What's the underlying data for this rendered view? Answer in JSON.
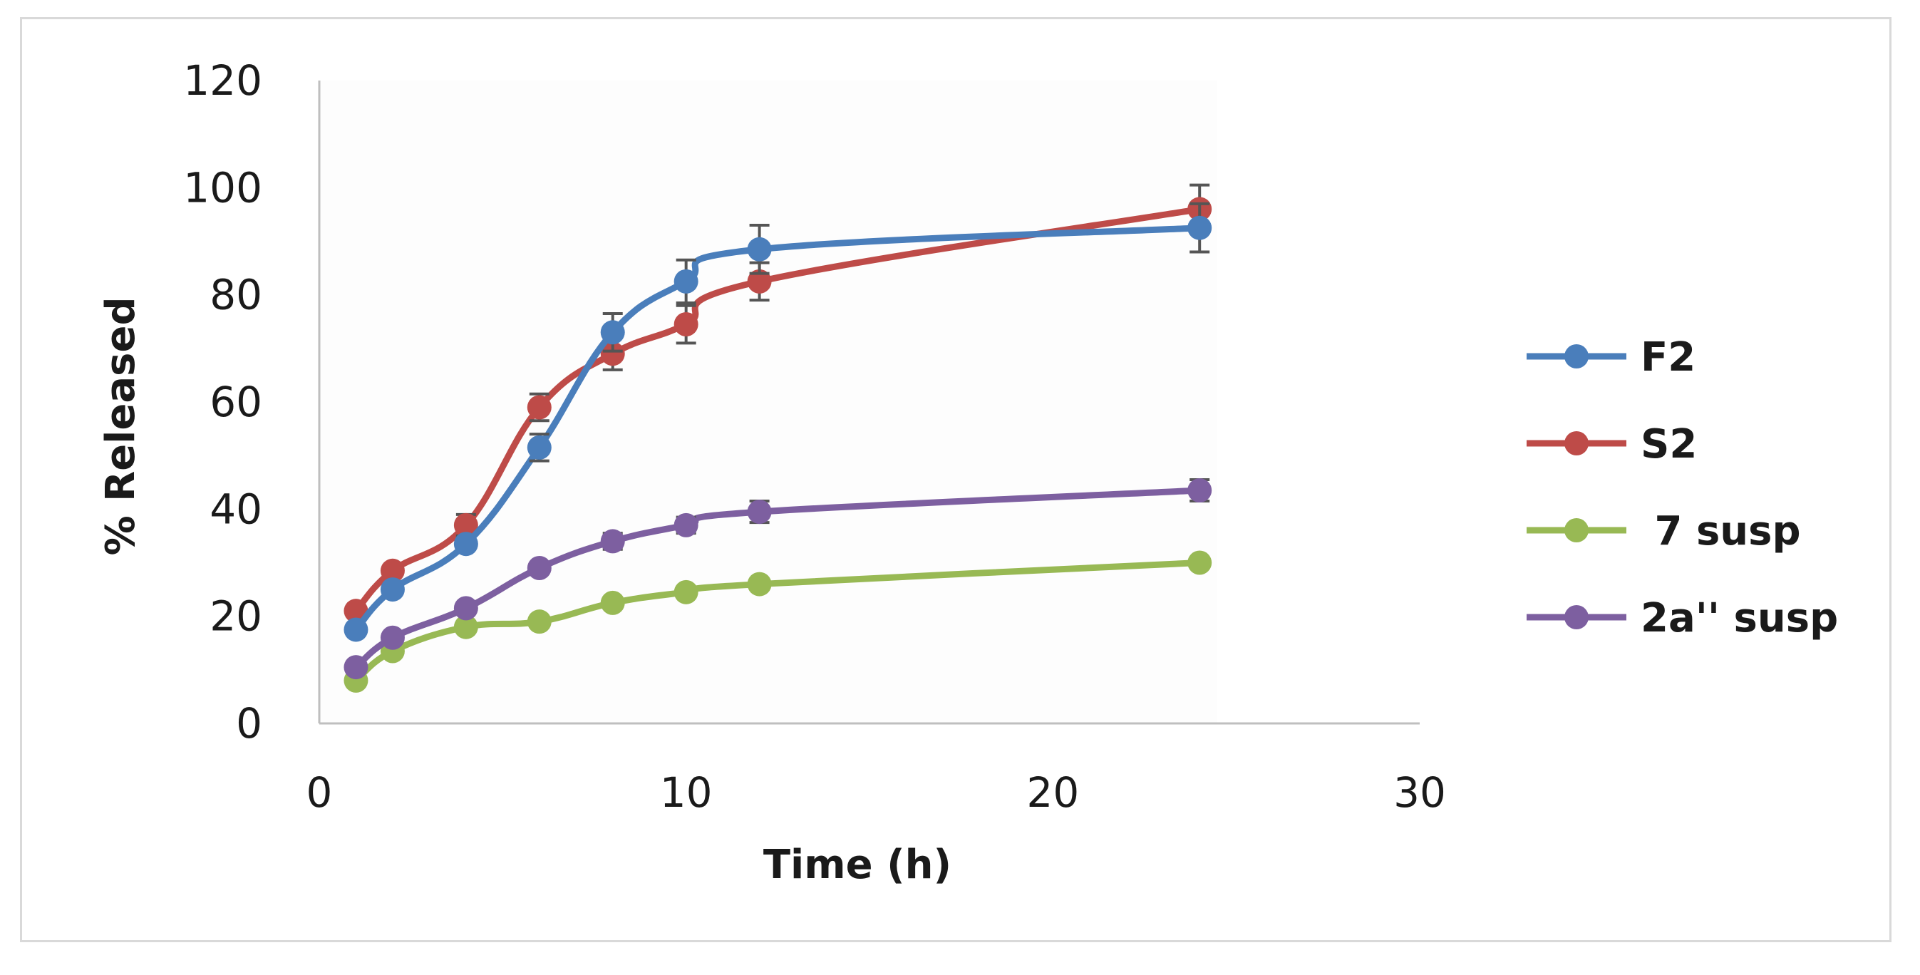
{
  "chart_data": {
    "type": "line",
    "title": "",
    "xlabel": "Time (h)",
    "ylabel": "% Released",
    "xlim": [
      0,
      30
    ],
    "ylim": [
      0,
      120
    ],
    "xticks": [
      0,
      10,
      20,
      30
    ],
    "xtick_labels": [
      "0",
      "10",
      "20",
      "30"
    ],
    "yticks": [
      0,
      20,
      40,
      60,
      80,
      100,
      120
    ],
    "ytick_labels": [
      "0",
      "20",
      "40",
      "60",
      "80",
      "100",
      "120"
    ],
    "grid": false,
    "legend_position": "right",
    "series": [
      {
        "name": "F2",
        "color": "#4a7ebb",
        "x": [
          1,
          2,
          4,
          6,
          8,
          10,
          12,
          24
        ],
        "y": [
          17.5,
          25,
          33.5,
          51.5,
          73,
          82.5,
          88.5,
          92.5
        ],
        "error": [
          0,
          0,
          0,
          2.5,
          3.5,
          4,
          4.5,
          4.5
        ]
      },
      {
        "name": "S2",
        "color": "#be4b48",
        "x": [
          1,
          2,
          4,
          6,
          8,
          10,
          12,
          24
        ],
        "y": [
          21,
          28.5,
          37,
          59,
          69,
          74.5,
          82.5,
          96
        ],
        "error": [
          0,
          0,
          2,
          2.5,
          3,
          3.5,
          3.5,
          4.5
        ]
      },
      {
        "name": " 7 susp",
        "color": "#98b954",
        "x": [
          1,
          2,
          4,
          6,
          8,
          10,
          12,
          24
        ],
        "y": [
          8,
          13.5,
          18,
          19,
          22.5,
          24.5,
          26,
          30
        ],
        "error": [
          0,
          0,
          0,
          0,
          0,
          0,
          0,
          0
        ]
      },
      {
        "name": "2a'' susp",
        "color": "#7d5fa0",
        "x": [
          1,
          2,
          4,
          6,
          8,
          10,
          12,
          24
        ],
        "y": [
          10.5,
          16,
          21.5,
          29,
          34,
          37,
          39.5,
          43.5
        ],
        "error": [
          0,
          0,
          0,
          0,
          1.5,
          1.5,
          2,
          2
        ]
      }
    ]
  }
}
